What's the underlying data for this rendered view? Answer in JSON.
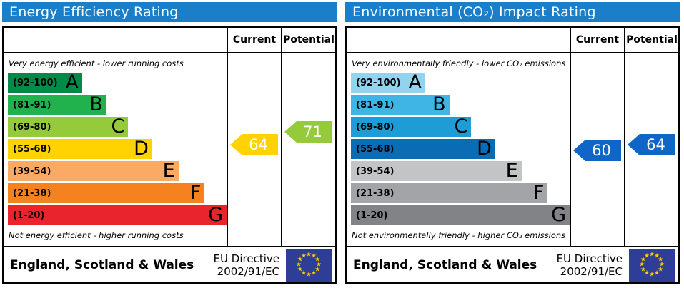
{
  "chart_data": [
    {
      "type": "bar",
      "title": "Energy Efficiency Rating",
      "columns": [
        "Current",
        "Potential"
      ],
      "caption_top": "Very energy efficient - lower running costs",
      "caption_bottom": "Not energy efficient - higher running costs",
      "categories": [
        "A",
        "B",
        "C",
        "D",
        "E",
        "F",
        "G"
      ],
      "range_labels": [
        "(92-100)",
        "(81-91)",
        "(69-80)",
        "(55-68)",
        "(39-54)",
        "(21-38)",
        "(1-20)"
      ],
      "ranges": [
        [
          92,
          100
        ],
        [
          81,
          91
        ],
        [
          69,
          80
        ],
        [
          55,
          68
        ],
        [
          39,
          54
        ],
        [
          21,
          38
        ],
        [
          1,
          20
        ]
      ],
      "band_colors": [
        "#008a47",
        "#21b24d",
        "#95ca3b",
        "#ffd200",
        "#fbaa65",
        "#f5821f",
        "#e9242d"
      ],
      "band_width_pct": [
        34,
        45,
        55,
        66,
        78,
        90,
        100
      ],
      "current": {
        "value": 64,
        "label": "64",
        "color": "#ffd200"
      },
      "potential": {
        "value": 71,
        "label": "71",
        "color": "#95ca3b"
      },
      "footer_region": "England, Scotland & Wales",
      "footer_directive": [
        "EU Directive",
        "2002/91/EC"
      ]
    },
    {
      "type": "bar",
      "title": "Environmental (CO₂) Impact Rating",
      "columns": [
        "Current",
        "Potential"
      ],
      "caption_top": "Very environmentally friendly - lower CO₂ emissions",
      "caption_bottom": "Not environmentally friendly - higher CO₂ emissions",
      "categories": [
        "A",
        "B",
        "C",
        "D",
        "E",
        "F",
        "G"
      ],
      "range_labels": [
        "(92-100)",
        "(81-91)",
        "(69-80)",
        "(55-68)",
        "(39-54)",
        "(21-38)",
        "(1-20)"
      ],
      "ranges": [
        [
          92,
          100
        ],
        [
          81,
          91
        ],
        [
          69,
          80
        ],
        [
          55,
          68
        ],
        [
          39,
          54
        ],
        [
          21,
          38
        ],
        [
          1,
          20
        ]
      ],
      "band_colors": [
        "#92d3f0",
        "#3fb5e5",
        "#1d9cd6",
        "#0a6cb5",
        "#c3c4c6",
        "#a2a4a7",
        "#818386"
      ],
      "band_width_pct": [
        34,
        45,
        55,
        66,
        78,
        90,
        100
      ],
      "current": {
        "value": 60,
        "label": "60",
        "color": "#1066c7"
      },
      "potential": {
        "value": 64,
        "label": "64",
        "color": "#1066c7"
      },
      "footer_region": "England, Scotland & Wales",
      "footer_directive": [
        "EU Directive",
        "2002/91/EC"
      ]
    }
  ],
  "colors": {
    "header_bg": "#1b7ec8",
    "header_text": "#ffffff",
    "border": "#000000",
    "eu_flag_bg": "#2e3d96",
    "eu_star": "#ffcc00"
  }
}
